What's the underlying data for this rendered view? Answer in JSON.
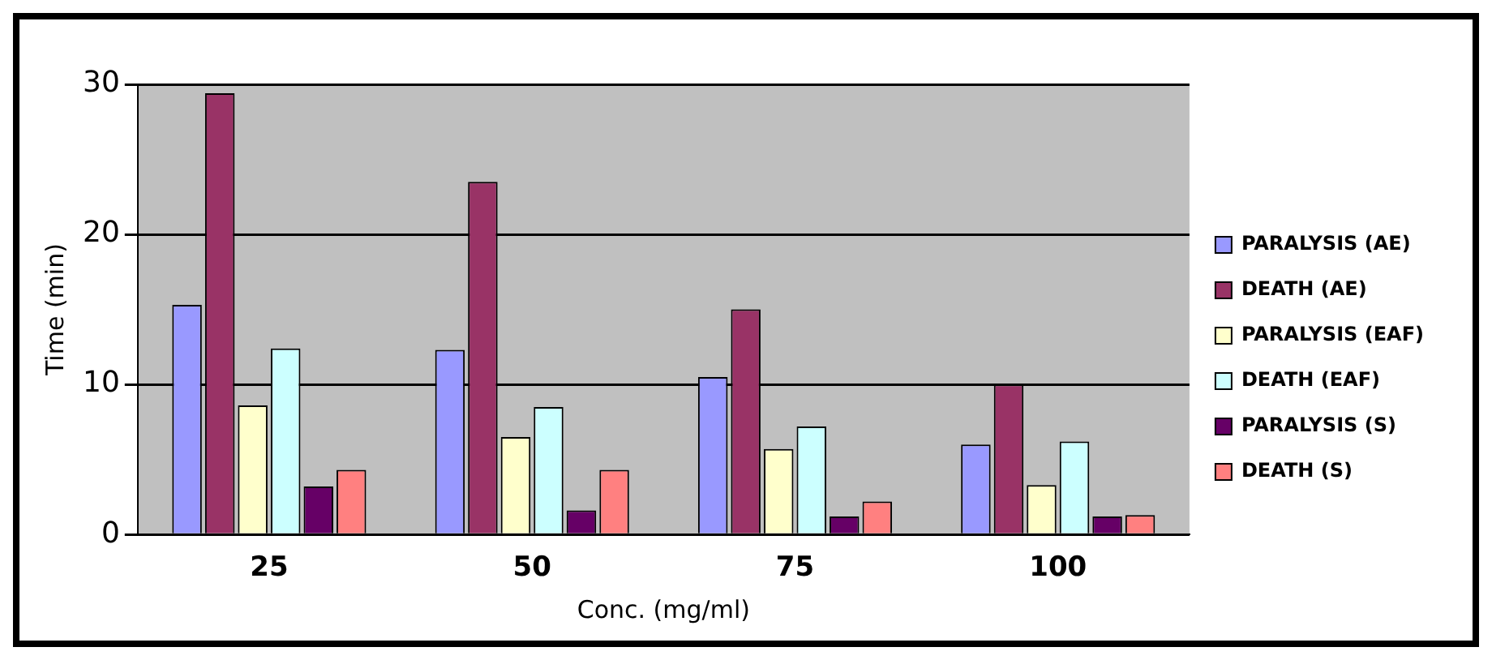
{
  "chart_data": {
    "type": "bar",
    "xlabel": "Conc. (mg/ml)",
    "ylabel": "Time (min)",
    "categories": [
      "25",
      "50",
      "75",
      "100"
    ],
    "series": [
      {
        "name": "PARALYSIS (AE)",
        "color": "#9999ff",
        "values": [
          15.3,
          12.3,
          10.5,
          6
        ]
      },
      {
        "name": "DEATH (AE)",
        "color": "#993366",
        "values": [
          29.4,
          23.5,
          15,
          10
        ]
      },
      {
        "name": "PARALYSIS (EAF)",
        "color": "#ffffcc",
        "values": [
          8.6,
          6.5,
          5.7,
          3.3
        ]
      },
      {
        "name": "DEATH (EAF)",
        "color": "#ccffff",
        "values": [
          12.4,
          8.5,
          7.2,
          6.2
        ]
      },
      {
        "name": "PARALYSIS (S)",
        "color": "#660066",
        "values": [
          3.2,
          1.6,
          1.2,
          1.2
        ]
      },
      {
        "name": "DEATH (S)",
        "color": "#ff8080",
        "values": [
          4.3,
          4.3,
          2.2,
          1.3
        ]
      }
    ],
    "ylim": [
      0,
      30
    ],
    "yticks": [
      0,
      10,
      20,
      30
    ],
    "grid": "y",
    "legend": "right"
  }
}
